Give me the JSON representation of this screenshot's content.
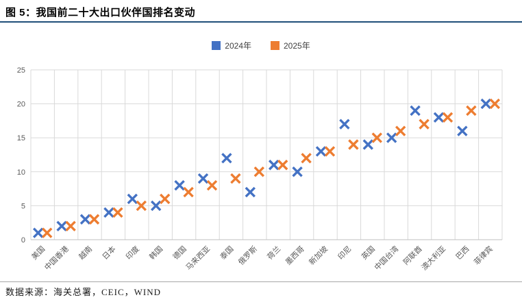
{
  "header": {
    "title": "图 5：我国前二十大出口伙伴国排名变动",
    "rule_color": "#1F4E79"
  },
  "legend": [
    {
      "label": "2024年",
      "color": "#4472C4"
    },
    {
      "label": "2025年",
      "color": "#ED7D31"
    }
  ],
  "chart_data": {
    "type": "scatter",
    "marker": "x",
    "title": "我国前二十大出口伙伴国排名变动",
    "xlabel": "",
    "ylabel": "",
    "ylim": [
      0,
      25
    ],
    "yticks": [
      0,
      5,
      10,
      15,
      20,
      25
    ],
    "grid": true,
    "legend_position": "top",
    "gridline_color": "#D9D9D9",
    "categories": [
      "美国",
      "中国香港",
      "越南",
      "日本",
      "印度",
      "韩国",
      "德国",
      "马来西亚",
      "泰国",
      "俄罗斯",
      "荷兰",
      "墨西哥",
      "新加坡",
      "印尼",
      "英国",
      "中国台湾",
      "阿联酋",
      "澳大利亚",
      "巴西",
      "菲律宾"
    ],
    "series": [
      {
        "name": "2024年",
        "color": "#4472C4",
        "values": [
          1,
          2,
          3,
          4,
          6,
          5,
          8,
          9,
          12,
          7,
          11,
          10,
          13,
          17,
          14,
          15,
          19,
          18,
          16,
          20
        ]
      },
      {
        "name": "2025年",
        "color": "#ED7D31",
        "values": [
          1,
          2,
          3,
          4,
          5,
          6,
          7,
          8,
          9,
          10,
          11,
          12,
          13,
          14,
          15,
          16,
          17,
          18,
          19,
          20
        ]
      }
    ]
  },
  "footer": {
    "source": "数据来源：海关总署，CEIC，WIND"
  }
}
